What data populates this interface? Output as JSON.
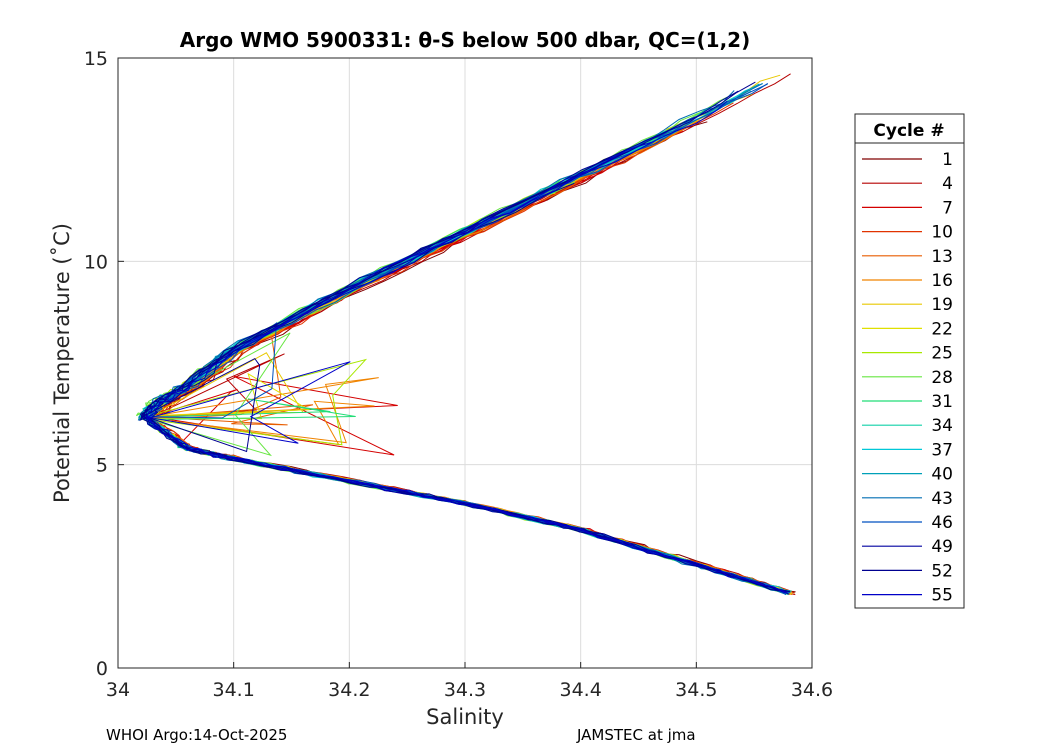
{
  "chart_data": {
    "type": "line",
    "title": "Argo WMO 5900331: θ-S below 500 dbar,  QC=(1,2)",
    "xlabel": "Salinity",
    "ylabel": "Potential Temperature (˚C)",
    "xlim": [
      34,
      34.6
    ],
    "ylim": [
      0,
      15
    ],
    "xticks": [
      "34",
      "34.1",
      "34.2",
      "34.3",
      "34.4",
      "34.5",
      "34.6"
    ],
    "yticks": [
      "0",
      "5",
      "10",
      "15"
    ],
    "grid": true,
    "legend": {
      "title": "Cycle #",
      "placement": "outside-right",
      "entries": [
        "1",
        "4",
        "7",
        "10",
        "13",
        "16",
        "19",
        "22",
        "25",
        "28",
        "31",
        "34",
        "37",
        "40",
        "43",
        "46",
        "49",
        "52",
        "55"
      ],
      "colors": [
        "#800000",
        "#b50000",
        "#d40000",
        "#e13300",
        "#e85d00",
        "#f08400",
        "#e8c800",
        "#e0e000",
        "#a8e800",
        "#66e640",
        "#22dd77",
        "#10d0a8",
        "#00c8d8",
        "#00a0b8",
        "#006eb4",
        "#0050c0",
        "#0000a0",
        "#000090",
        "#0000c8"
      ]
    },
    "series_shape": {
      "upper_branch": [
        [
          34.59,
          14.85
        ],
        [
          34.5,
          13.5
        ],
        [
          34.4,
          12.1
        ],
        [
          34.3,
          10.7
        ],
        [
          34.2,
          9.3
        ],
        [
          34.1,
          7.8
        ],
        [
          34.06,
          6.9
        ],
        [
          34.035,
          6.5
        ],
        [
          34.025,
          6.15
        ]
      ],
      "lower_branch": [
        [
          34.025,
          6.15
        ],
        [
          34.06,
          5.4
        ],
        [
          34.1,
          5.15
        ],
        [
          34.2,
          4.6
        ],
        [
          34.3,
          4.05
        ],
        [
          34.4,
          3.4
        ],
        [
          34.5,
          2.55
        ],
        [
          34.58,
          1.85
        ]
      ]
    }
  },
  "footer": {
    "left": "WHOI Argo:14-Oct-2025",
    "right": "JAMSTEC at jma"
  }
}
